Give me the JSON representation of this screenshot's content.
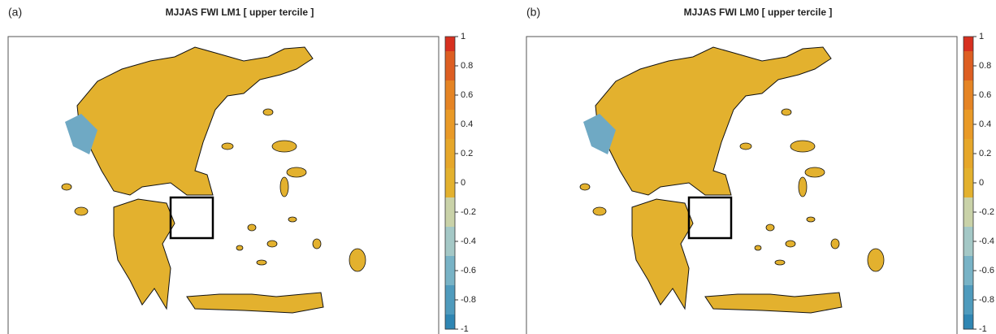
{
  "panels": [
    {
      "label": "(a)",
      "title": "MJJAS FWI LM1 [ upper tercile ]",
      "colorbar": {
        "lim": [
          -1,
          1
        ],
        "ticks": [
          1,
          0.8,
          0.6,
          0.4,
          0.2,
          0,
          -0.2,
          -0.4,
          -0.6,
          -0.8,
          -1
        ]
      }
    },
    {
      "label": "(b)",
      "title": "MJJAS FWI LM0 [ upper tercile ]",
      "colorbar": {
        "lim": [
          -1,
          1
        ],
        "ticks": [
          1,
          0.8,
          0.6,
          0.4,
          0.2,
          0,
          -0.2,
          -0.4,
          -0.6,
          -0.8,
          -1
        ]
      }
    }
  ]
}
